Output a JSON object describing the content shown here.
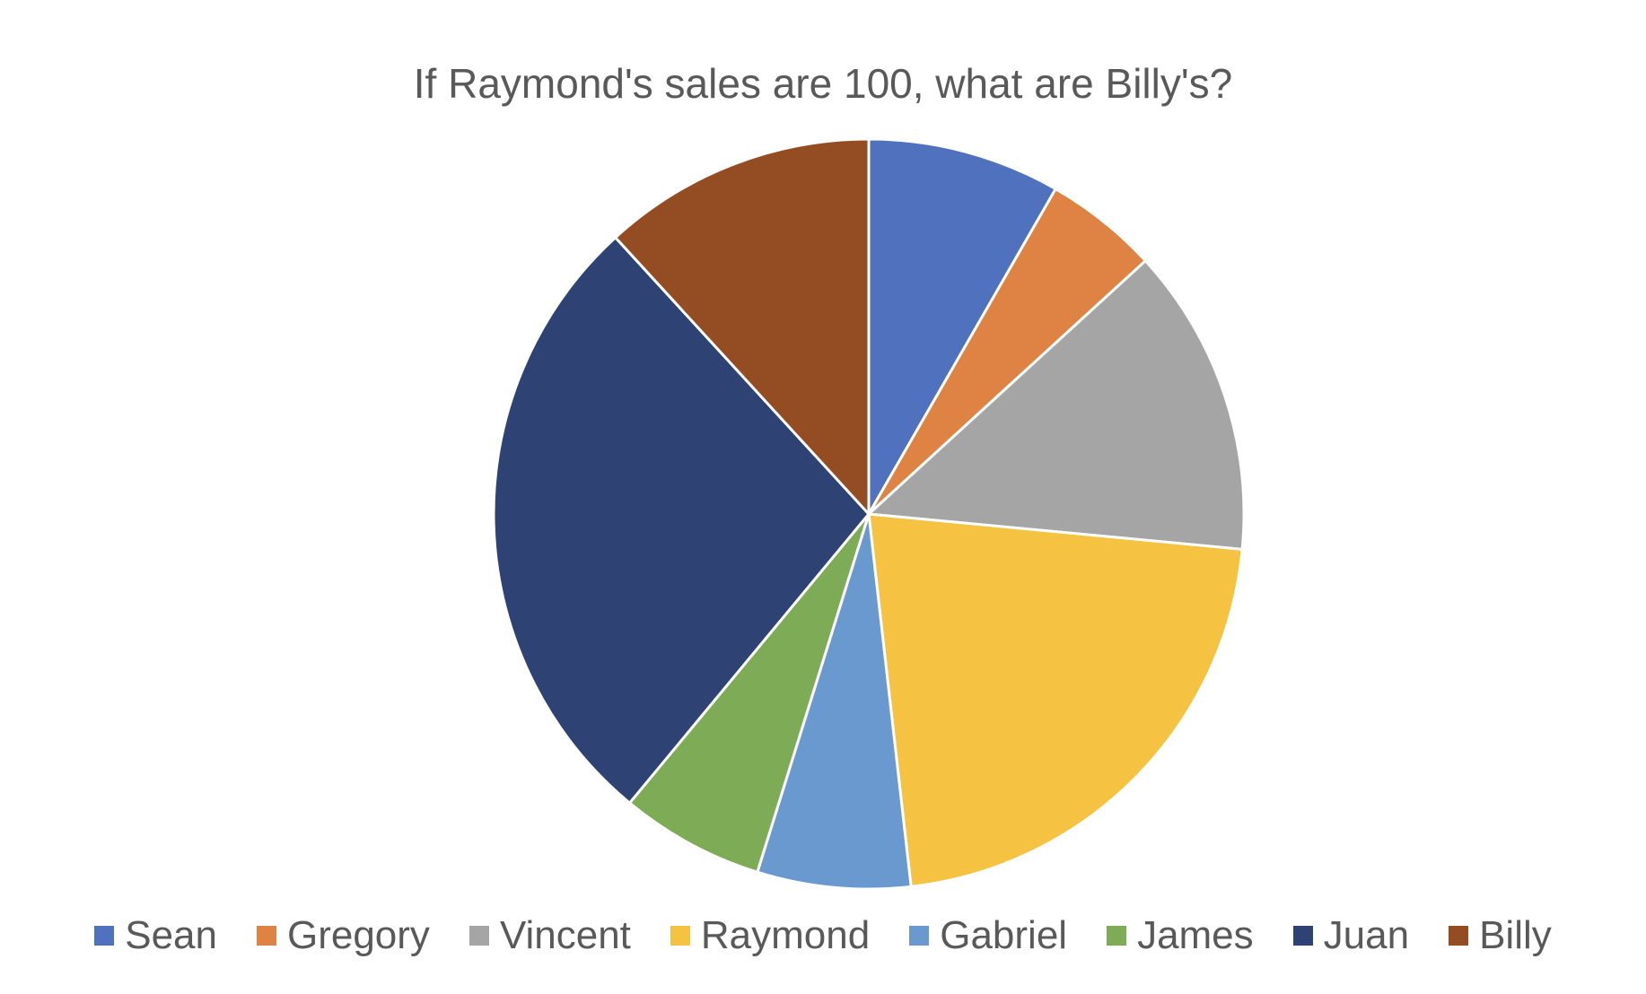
{
  "chart_data": {
    "type": "pie",
    "title": "If Raymond's sales are 100, what are Billy's?",
    "categories": [
      "Sean",
      "Gregory",
      "Vincent",
      "Raymond",
      "Gabriel",
      "James",
      "Juan",
      "Billy"
    ],
    "values": [
      8.3,
      4.9,
      13.3,
      21.7,
      6.6,
      6.2,
      27.2,
      11.8
    ],
    "colors": [
      "#5072BE",
      "#DE8344",
      "#A5A5A5",
      "#F5C242",
      "#6A99D0",
      "#7EAB55",
      "#2E4373",
      "#944D22"
    ],
    "legend_position": "bottom",
    "start_angle": "top",
    "direction": "clockwise"
  }
}
